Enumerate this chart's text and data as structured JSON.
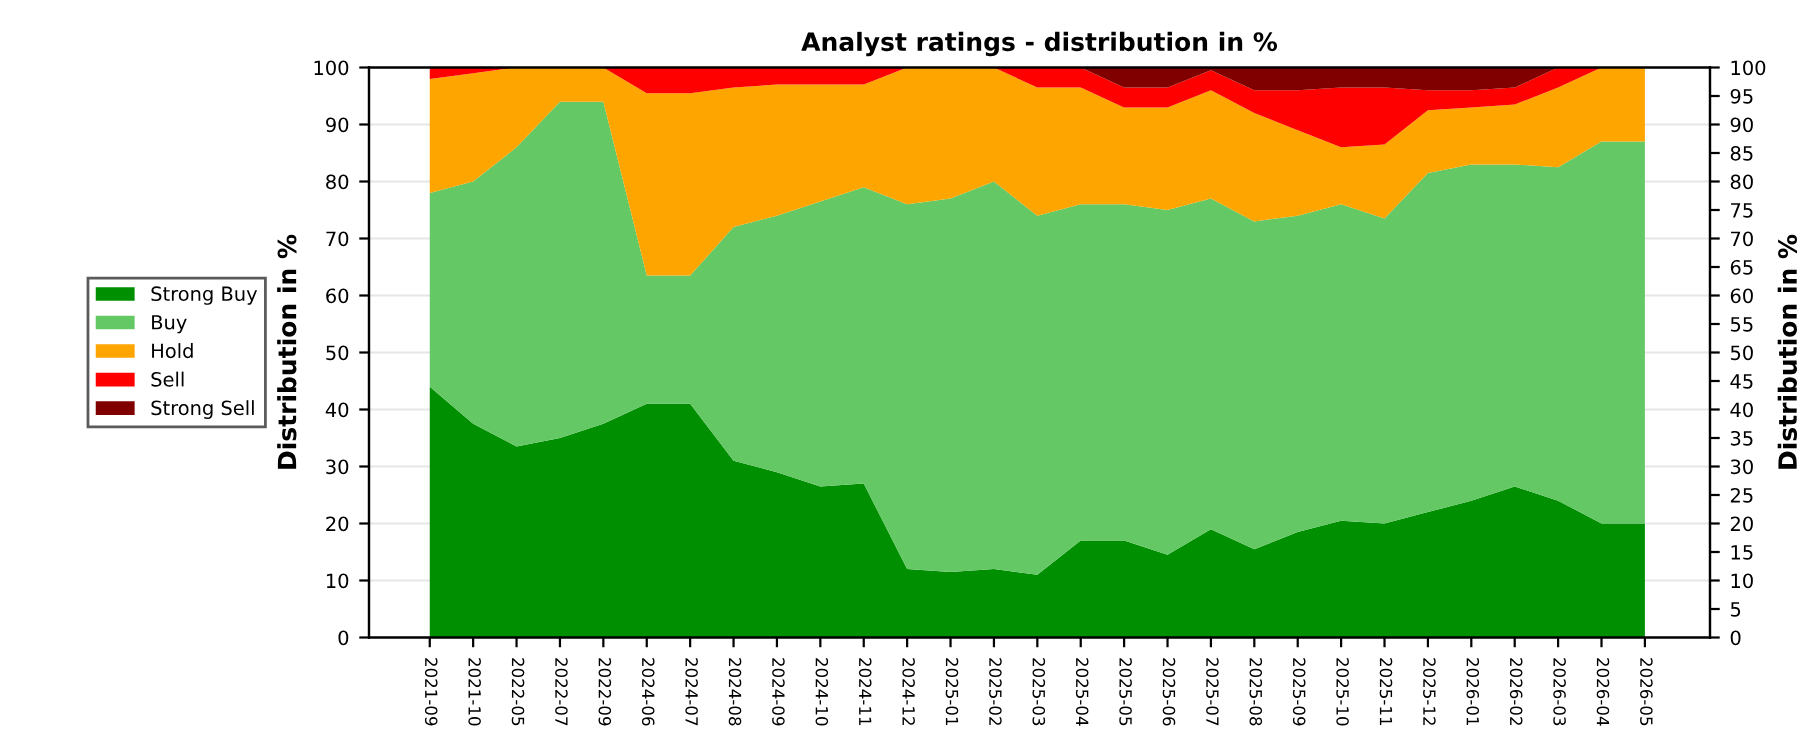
{
  "chart_data": {
    "type": "area",
    "stacked": true,
    "title": "Analyst ratings - distribution in %",
    "ylabel": "Distribution in %",
    "y2label": "Distribution in %",
    "categories": [
      "2021-09",
      "2021-10",
      "2022-05",
      "2022-07",
      "2022-09",
      "2024-06",
      "2024-07",
      "2024-08",
      "2024-09",
      "2024-10",
      "2024-11",
      "2024-12",
      "2025-01",
      "2025-02",
      "2025-03",
      "2025-04",
      "2025-05",
      "2025-06",
      "2025-07",
      "2025-08",
      "2025-09",
      "2025-10",
      "2025-11",
      "2025-12",
      "2026-01",
      "2026-02",
      "2026-03",
      "2026-04",
      "2026-05"
    ],
    "series": [
      {
        "name": "Strong Buy",
        "color": "#008f00",
        "values": [
          44,
          37.5,
          33.5,
          35,
          37.5,
          41,
          41,
          31,
          29,
          26.5,
          27,
          12,
          11.5,
          12,
          11,
          17,
          17,
          14.5,
          19,
          15.5,
          18.5,
          20.5,
          20,
          22,
          24,
          26.5,
          24,
          20,
          20
        ]
      },
      {
        "name": "Buy",
        "color": "#64c864",
        "values": [
          34,
          42.5,
          52.5,
          59,
          56.5,
          22.5,
          22.5,
          41,
          45,
          50,
          52,
          64,
          65.5,
          68,
          63,
          59,
          59,
          60.5,
          58,
          57.5,
          55.5,
          55.5,
          53.5,
          59.5,
          59,
          56.5,
          58.5,
          67,
          67
        ]
      },
      {
        "name": "Hold",
        "color": "#ffa500",
        "values": [
          20,
          19,
          14,
          6,
          6,
          32,
          32,
          24.5,
          23,
          20.5,
          18,
          24,
          23,
          20,
          22.5,
          20.5,
          17,
          18,
          19,
          19,
          15,
          10,
          13,
          11,
          10,
          10.5,
          14,
          13,
          13
        ]
      },
      {
        "name": "Sell",
        "color": "#ff0000",
        "values": [
          2,
          1,
          0,
          0,
          0,
          4.5,
          4.5,
          3.5,
          3,
          3,
          3,
          0,
          0,
          0,
          3.5,
          3.5,
          3.5,
          3.5,
          3.5,
          4,
          7,
          10.5,
          10,
          3.5,
          3,
          3,
          3.5,
          0,
          0
        ]
      },
      {
        "name": "Strong Sell",
        "color": "#800000",
        "values": [
          0,
          0,
          0,
          0,
          0,
          0,
          0,
          0,
          0,
          0,
          0,
          0,
          0,
          0,
          0,
          0,
          3.5,
          3.5,
          0.5,
          4,
          4,
          3.5,
          3.5,
          4,
          4,
          3.5,
          0,
          0,
          0
        ]
      }
    ],
    "ylim": [
      0,
      100
    ],
    "yticks": [
      0,
      10,
      20,
      30,
      40,
      50,
      60,
      70,
      80,
      90,
      100
    ],
    "y2lim": [
      0,
      100
    ],
    "y2ticks": [
      0,
      5,
      10,
      15,
      20,
      25,
      30,
      35,
      40,
      45,
      50,
      55,
      60,
      65,
      70,
      75,
      80,
      85,
      90,
      95,
      100
    ],
    "grid": "y",
    "legend": "left"
  }
}
